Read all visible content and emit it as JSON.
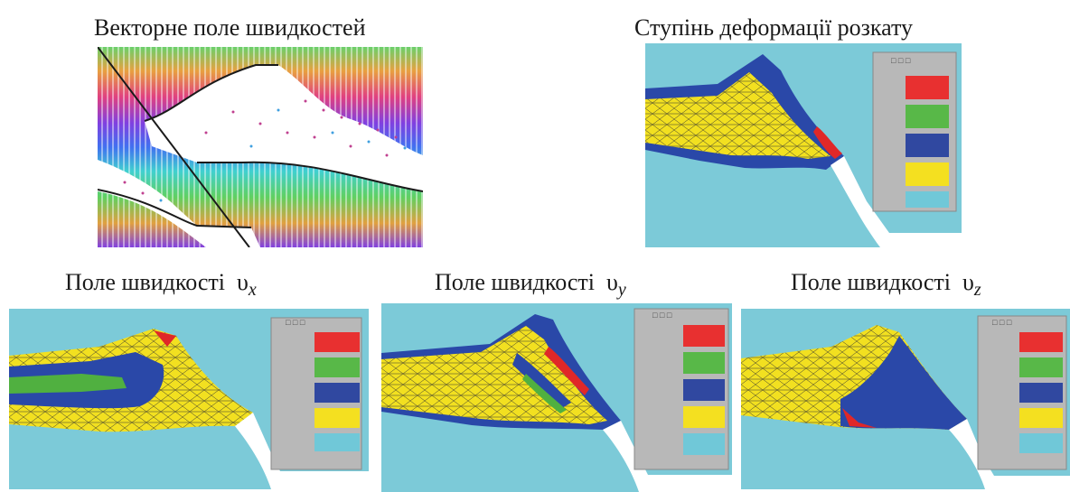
{
  "captions": {
    "vector_field": "Векторне поле швидкостей",
    "deformation": "Ступінь деформації розкату",
    "vx_prefix": "Поле швидкості",
    "vx_symbol": "υ",
    "vx_sub": "x",
    "vy_prefix": "Поле швидкості",
    "vy_symbol": "υ",
    "vy_sub": "y",
    "vz_prefix": "Поле швидкості",
    "vz_symbol": "υ",
    "vz_sub": "z"
  },
  "legend_colors": [
    "#e83030",
    "#58b848",
    "#3048a0",
    "#f4e020",
    "#70c8d8"
  ],
  "colors": {
    "background_cyan": "#7ccad8",
    "legend_panel": "#b8b8b8",
    "mesh_yellow": "#f2e020",
    "zone_blue": "#2a48a8",
    "zone_green": "#50b040",
    "zone_red": "#e02828"
  }
}
